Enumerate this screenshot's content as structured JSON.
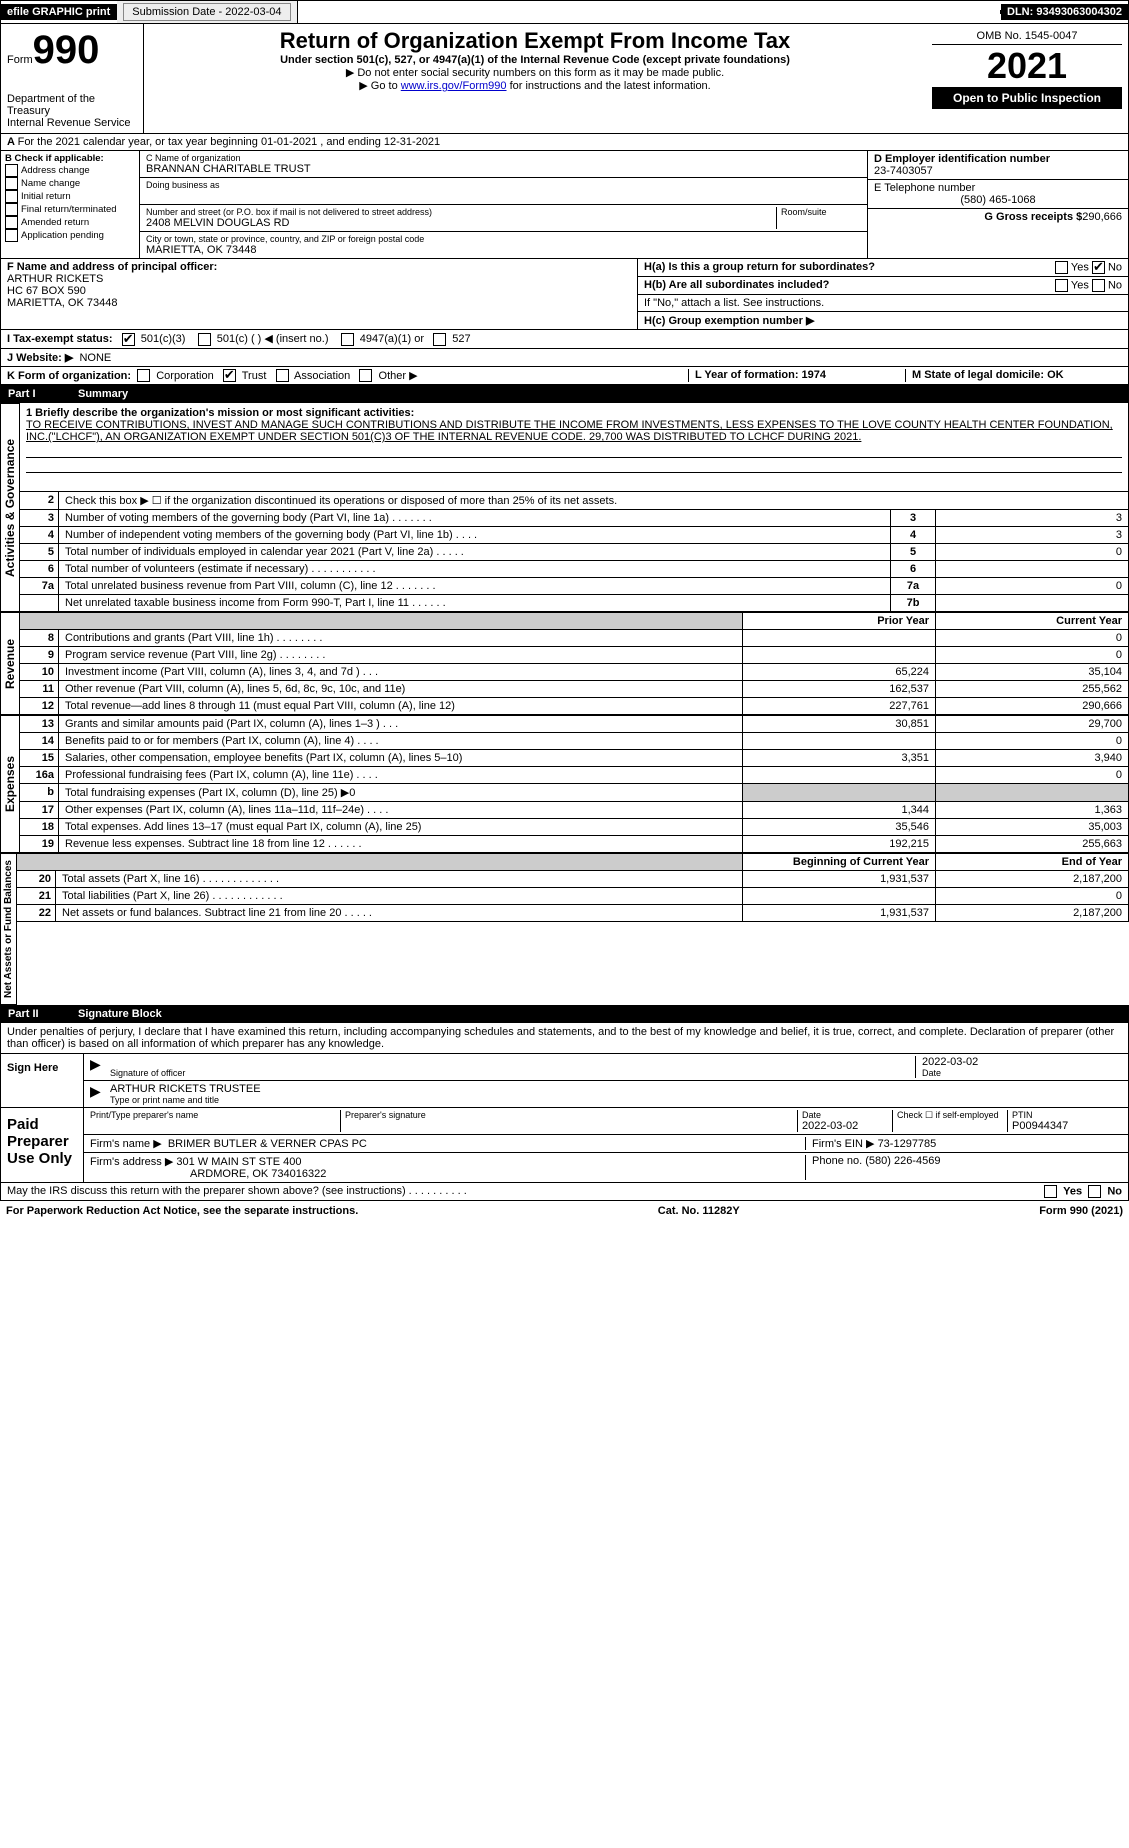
{
  "top": {
    "efile": "efile GRAPHIC print",
    "submission_label": "Submission Date - 2022-03-04",
    "dln_label": "DLN: 93493063004302"
  },
  "header": {
    "form_word": "Form",
    "form_num": "990",
    "title": "Return of Organization Exempt From Income Tax",
    "sub1": "Under section 501(c), 527, or 4947(a)(1) of the Internal Revenue Code (except private foundations)",
    "sub2": "▶ Do not enter social security numbers on this form as it may be made public.",
    "sub3_pre": "▶ Go to ",
    "sub3_link": "www.irs.gov/Form990",
    "sub3_post": " for instructions and the latest information.",
    "dept": "Department of the Treasury",
    "irs": "Internal Revenue Service",
    "omb": "OMB No. 1545-0047",
    "year": "2021",
    "open": "Open to Public Inspection"
  },
  "line_a": "For the 2021 calendar year, or tax year beginning 01-01-2021     , and ending 12-31-2021",
  "section_b": {
    "check_label": "B Check if applicable:",
    "opts": [
      "Address change",
      "Name change",
      "Initial return",
      "Final return/terminated",
      "Amended return",
      "Application pending"
    ],
    "c_label": "C Name of organization",
    "c_name": "BRANNAN CHARITABLE TRUST",
    "dba": "Doing business as",
    "street_label": "Number and street (or P.O. box if mail is not delivered to street address)",
    "room": "Room/suite",
    "street": "2408 MELVIN DOUGLAS RD",
    "city_label": "City or town, state or province, country, and ZIP or foreign postal code",
    "city": "MARIETTA, OK  73448",
    "d_label": "D Employer identification number",
    "d_val": "23-7403057",
    "e_label": "E Telephone number",
    "e_val": "(580) 465-1068",
    "g_label": "G Gross receipts $",
    "g_val": "290,666"
  },
  "section_f": {
    "f_label": "F  Name and address of principal officer:",
    "f_name": "ARTHUR RICKETS",
    "f_addr1": "HC 67 BOX 590",
    "f_addr2": "MARIETTA, OK  73448",
    "ha": "H(a)  Is this a group return for subordinates?",
    "hb": "H(b)  Are all subordinates included?",
    "hb_note": "If \"No,\" attach a list. See instructions.",
    "hc": "H(c)  Group exemption number ▶",
    "yes": "Yes",
    "no": "No"
  },
  "tax_status": {
    "i_label": "I   Tax-exempt status:",
    "o1": "501(c)(3)",
    "o2": "501(c) (   ) ◀ (insert no.)",
    "o3": "4947(a)(1) or",
    "o4": "527",
    "j_label": "J   Website: ▶",
    "j_val": "NONE"
  },
  "k_l_m": {
    "k": "K Form of organization:",
    "corp": "Corporation",
    "trust": "Trust",
    "assoc": "Association",
    "other": "Other ▶",
    "l": "L Year of formation: 1974",
    "m": "M State of legal domicile: OK"
  },
  "part1": {
    "label": "Part I",
    "title": "Summary",
    "line1": "1  Briefly describe the organization's mission or most significant activities:",
    "mission": "TO RECEIVE CONTRIBUTIONS, INVEST AND MANAGE SUCH CONTRIBUTIONS AND DISTRIBUTE THE INCOME FROM INVESTMENTS, LESS EXPENSES TO THE LOVE COUNTY HEALTH CENTER FOUNDATION, INC.(\"LCHCF\"), AN ORGANIZATION EXEMPT UNDER SECTION 501(C)3 OF THE INTERNAL REVENUE CODE. 29,700 WAS DISTRIBUTED TO LCHCF DURING 2021.",
    "line2": "Check this box ▶ ☐  if the organization discontinued its operations or disposed of more than 25% of its net assets.",
    "rows_simple": [
      {
        "n": "3",
        "t": "Number of voting members of the governing body (Part VI, line 1a)   .     .     .     .     .     .     .",
        "b": "3",
        "v": "3"
      },
      {
        "n": "4",
        "t": "Number of independent voting members of the governing body (Part VI, line 1b)   .     .     .     .",
        "b": "4",
        "v": "3"
      },
      {
        "n": "5",
        "t": "Total number of individuals employed in calendar year 2021 (Part V, line 2a)   .     .     .     .     .",
        "b": "5",
        "v": "0"
      },
      {
        "n": "6",
        "t": "Total number of volunteers (estimate if necessary)    .     .     .     .     .     .     .     .     .     .     .",
        "b": "6",
        "v": ""
      },
      {
        "n": "7a",
        "t": "Total unrelated business revenue from Part VIII, column (C), line 12   .     .     .     .     .     .     .",
        "b": "7a",
        "v": "0"
      },
      {
        "n": "",
        "t": "Net unrelated taxable business income from Form 990-T, Part I, line 11   .     .     .     .     .     .",
        "b": "7b",
        "v": ""
      }
    ],
    "pyr": "Prior Year",
    "cyr": "Current Year",
    "rev": [
      {
        "n": "8",
        "t": "Contributions and grants (Part VIII, line 1h)   .     .     .     .     .     .     .     .",
        "p": "",
        "c": "0"
      },
      {
        "n": "9",
        "t": "Program service revenue (Part VIII, line 2g)   .     .     .     .     .     .     .     .",
        "p": "",
        "c": "0"
      },
      {
        "n": "10",
        "t": "Investment income (Part VIII, column (A), lines 3, 4, and 7d )   .     .     .",
        "p": "65,224",
        "c": "35,104"
      },
      {
        "n": "11",
        "t": "Other revenue (Part VIII, column (A), lines 5, 6d, 8c, 9c, 10c, and 11e)",
        "p": "162,537",
        "c": "255,562"
      },
      {
        "n": "12",
        "t": "Total revenue—add lines 8 through 11 (must equal Part VIII, column (A), line 12)",
        "p": "227,761",
        "c": "290,666"
      }
    ],
    "exp": [
      {
        "n": "13",
        "t": "Grants and similar amounts paid (Part IX, column (A), lines 1–3 )  .     .     .",
        "p": "30,851",
        "c": "29,700"
      },
      {
        "n": "14",
        "t": "Benefits paid to or for members (Part IX, column (A), line 4)   .     .     .     .",
        "p": "",
        "c": "0"
      },
      {
        "n": "15",
        "t": "Salaries, other compensation, employee benefits (Part IX, column (A), lines 5–10)",
        "p": "3,351",
        "c": "3,940"
      },
      {
        "n": "16a",
        "t": "Professional fundraising fees (Part IX, column (A), line 11e)   .     .     .     .",
        "p": "",
        "c": "0"
      },
      {
        "n": "b",
        "t": "Total fundraising expenses (Part IX, column (D), line 25) ▶0",
        "p": "shade",
        "c": "shade"
      },
      {
        "n": "17",
        "t": "Other expenses (Part IX, column (A), lines 11a–11d, 11f–24e)   .     .     .     .",
        "p": "1,344",
        "c": "1,363"
      },
      {
        "n": "18",
        "t": "Total expenses. Add lines 13–17 (must equal Part IX, column (A), line 25)",
        "p": "35,546",
        "c": "35,003"
      },
      {
        "n": "19",
        "t": "Revenue less expenses. Subtract line 18 from line 12  .     .     .     .     .     .",
        "p": "192,215",
        "c": "255,663"
      }
    ],
    "bcy": "Beginning of Current Year",
    "eoy": "End of Year",
    "net": [
      {
        "n": "20",
        "t": "Total assets (Part X, line 16)  .     .     .     .     .     .     .     .     .     .     .     .     .",
        "p": "1,931,537",
        "c": "2,187,200"
      },
      {
        "n": "21",
        "t": "Total liabilities (Part X, line 26)  .     .     .     .     .     .     .     .     .     .     .     .",
        "p": "",
        "c": "0"
      },
      {
        "n": "22",
        "t": "Net assets or fund balances. Subtract line 21 from line 20  .     .     .     .     .",
        "p": "1,931,537",
        "c": "2,187,200"
      }
    ],
    "side_act": "Activities & Governance",
    "side_rev": "Revenue",
    "side_exp": "Expenses",
    "side_net": "Net Assets or Fund Balances"
  },
  "part2": {
    "label": "Part II",
    "title": "Signature Block",
    "decl": "Under penalties of perjury, I declare that I have examined this return, including accompanying schedules and statements, and to the best of my knowledge and belief, it is true, correct, and complete. Declaration of preparer (other than officer) is based on all information of which preparer has any knowledge.",
    "sign_here": "Sign Here",
    "sig_officer": "Signature of officer",
    "date": "Date",
    "sig_date": "2022-03-02",
    "name_title": "ARTHUR RICKETS  TRUSTEE",
    "type_name": "Type or print name and title",
    "paid": "Paid Preparer Use Only",
    "pt_name": "Print/Type preparer's name",
    "pt_sig": "Preparer's signature",
    "pt_date_lbl": "Date",
    "pt_date": "2022-03-02",
    "pt_check": "Check ☐  if self-employed",
    "ptin_lbl": "PTIN",
    "ptin": "P00944347",
    "firm_name_lbl": "Firm's name      ▶",
    "firm_name": "BRIMER BUTLER & VERNER CPAS PC",
    "firm_ein_lbl": "Firm's EIN ▶",
    "firm_ein": "73-1297785",
    "firm_addr_lbl": "Firm's address ▶",
    "firm_addr1": "301 W MAIN ST STE 400",
    "firm_addr2": "ARDMORE, OK  734016322",
    "phone_lbl": "Phone no.",
    "phone": "(580) 226-4569",
    "may_irs": "May the IRS discuss this return with the preparer shown above? (see instructions)   .     .     .     .     .     .     .     .     .     .",
    "yes": "Yes",
    "no": "No"
  },
  "footer": {
    "pra": "For Paperwork Reduction Act Notice, see the separate instructions.",
    "cat": "Cat. No. 11282Y",
    "form": "Form 990 (2021)"
  }
}
